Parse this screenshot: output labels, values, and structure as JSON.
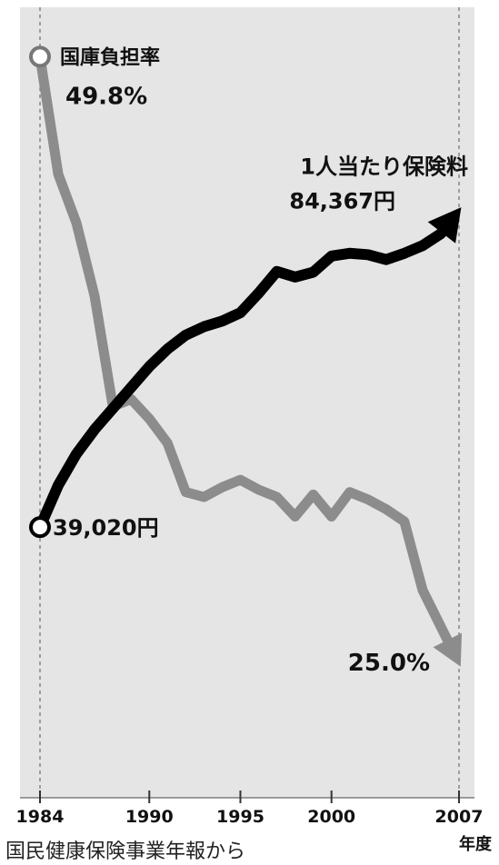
{
  "chart_data": {
    "type": "line",
    "title": "",
    "xlabel": "年度",
    "ylabel": "",
    "x_ticks": [
      1984,
      1990,
      1995,
      2000,
      2007
    ],
    "xlim": [
      1984,
      2007
    ],
    "source": "国民健康保険事業年報から",
    "series": [
      {
        "name": "国庫負担率",
        "color": "#8c8c8c",
        "unit": "%",
        "start_label": "49.8%",
        "end_label": "25.0%",
        "ylim": [
          24,
          50
        ],
        "points": [
          [
            1984,
            49.8
          ],
          [
            1985,
            45.0
          ],
          [
            1986,
            43.0
          ],
          [
            1987,
            40.0
          ],
          [
            1988,
            35.5
          ],
          [
            1989,
            35.8
          ],
          [
            1990,
            35.0
          ],
          [
            1991,
            34.0
          ],
          [
            1992,
            32.0
          ],
          [
            1993,
            31.8
          ],
          [
            1994,
            32.2
          ],
          [
            1995,
            32.5
          ],
          [
            1996,
            32.1
          ],
          [
            1997,
            31.8
          ],
          [
            1998,
            31.0
          ],
          [
            1999,
            31.9
          ],
          [
            2000,
            31.0
          ],
          [
            2001,
            32.0
          ],
          [
            2002,
            31.7
          ],
          [
            2003,
            31.3
          ],
          [
            2004,
            30.8
          ],
          [
            2005,
            28.0
          ],
          [
            2006,
            26.5
          ],
          [
            2007,
            25.0
          ]
        ]
      },
      {
        "name": "1人当たり保険料",
        "color": "#000000",
        "unit": "円",
        "start_label": "39,020円",
        "end_label": "84,367円",
        "ylim": [
          25000,
          90000
        ],
        "points": [
          [
            1984,
            39020
          ],
          [
            1985,
            45000
          ],
          [
            1986,
            49500
          ],
          [
            1987,
            53000
          ],
          [
            1988,
            56000
          ],
          [
            1989,
            59000
          ],
          [
            1990,
            62000
          ],
          [
            1991,
            64500
          ],
          [
            1992,
            66500
          ],
          [
            1993,
            67700
          ],
          [
            1994,
            68500
          ],
          [
            1995,
            69700
          ],
          [
            1996,
            72500
          ],
          [
            1997,
            75600
          ],
          [
            1998,
            74800
          ],
          [
            1999,
            75500
          ],
          [
            2000,
            77800
          ],
          [
            2001,
            78200
          ],
          [
            2002,
            78000
          ],
          [
            2003,
            77300
          ],
          [
            2004,
            78200
          ],
          [
            2005,
            79300
          ],
          [
            2006,
            81000
          ],
          [
            2007,
            84367
          ]
        ]
      }
    ]
  }
}
